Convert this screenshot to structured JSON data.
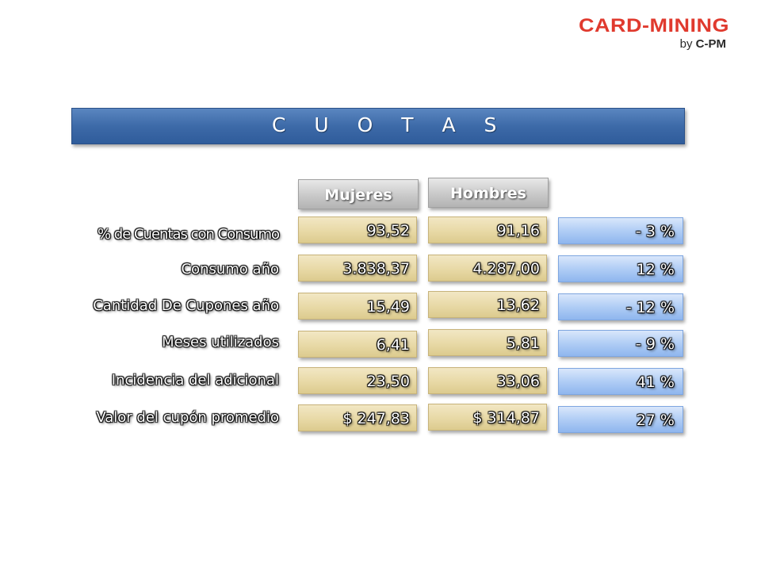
{
  "logo": {
    "main": "CARD-MINING",
    "sub_by": "by",
    "sub_brand": "C-PM"
  },
  "title": "C U O T A S",
  "headers": {
    "col1": "Mujeres",
    "col2": "Hombres"
  },
  "rows": [
    {
      "label": "% de Cuentas con Consumo",
      "mujeres": "93,52",
      "hombres": "91,16",
      "diff": "- 3 %"
    },
    {
      "label": "Consumo año",
      "mujeres": "3.838,37",
      "hombres": "4.287,00",
      "diff": "12 %"
    },
    {
      "label": "Cantidad  De Cupones año",
      "mujeres": "15,49",
      "hombres": "13,62",
      "diff": "- 12 %"
    },
    {
      "label": "Meses utilizados",
      "mujeres": "6,41",
      "hombres": "5,81",
      "diff": "- 9 %"
    },
    {
      "label": "Incidencia del adicional",
      "mujeres": "23,50",
      "hombres": "33,06",
      "diff": "41 %"
    },
    {
      "label": "Valor del cupón promedio",
      "mujeres": "$ 247,83",
      "hombres": "$ 314,87",
      "diff": "27 %"
    }
  ],
  "colors": {
    "title_bar": "#3d6aa8",
    "logo_red": "#e03a2e",
    "tan_cell": "#e8d9a6",
    "blue_cell": "#b0cdf5",
    "header_gray": "#c9c9c9"
  }
}
